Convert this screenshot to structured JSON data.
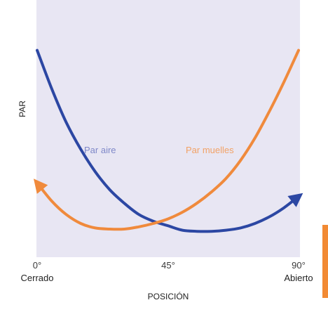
{
  "chart_data": {
    "type": "line",
    "xlabel": "POSICIÓN",
    "ylabel": "PAR",
    "xlim": [
      0,
      90
    ],
    "ylim": [
      0,
      100
    ],
    "grid": false,
    "x_ticks": [
      {
        "value": 0,
        "label": "0°",
        "sublabel": "Cerrado"
      },
      {
        "value": 45,
        "label": "45°",
        "sublabel": ""
      },
      {
        "value": 90,
        "label": "90°",
        "sublabel": "Abierto"
      }
    ],
    "series": [
      {
        "name": "Par aire",
        "color": "#2c47a3",
        "arrow_end": "end",
        "x": [
          0,
          5,
          10,
          15,
          20,
          25,
          30,
          35,
          40,
          45,
          50,
          55,
          60,
          65,
          70,
          75,
          80,
          85,
          90
        ],
        "y": [
          87,
          70,
          55,
          43,
          33,
          25,
          19,
          14,
          11,
          9,
          7,
          6.5,
          6.5,
          7,
          8,
          10,
          13,
          17,
          22
        ]
      },
      {
        "name": "Par muelles",
        "color": "#f08a3c",
        "arrow_end": "start",
        "x": [
          0,
          5,
          10,
          15,
          20,
          25,
          30,
          35,
          40,
          45,
          50,
          55,
          60,
          65,
          70,
          75,
          80,
          85,
          90
        ],
        "y": [
          28,
          20,
          14,
          10,
          8,
          7.5,
          7.5,
          8.5,
          10,
          12,
          15,
          19,
          24,
          30,
          38,
          48,
          60,
          73,
          87
        ]
      }
    ]
  },
  "colors": {
    "plot_background": "#e8e6f3",
    "side_bar": "#f28a33"
  }
}
